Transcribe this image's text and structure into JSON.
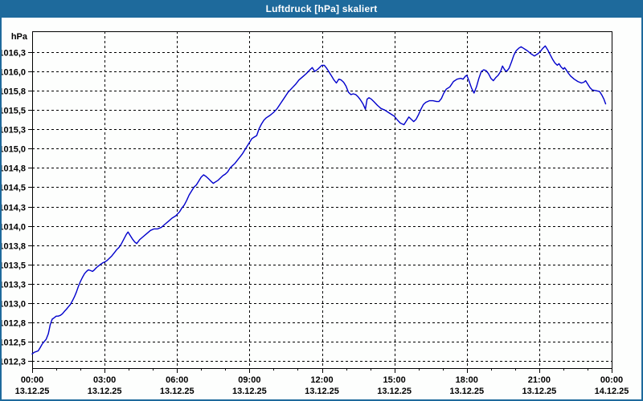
{
  "window": {
    "title": "Luftdruck [hPa] skaliert"
  },
  "chart_data": {
    "type": "line",
    "title": "Luftdruck [hPa] skaliert",
    "unit_label": "hPa",
    "xlabel": "",
    "ylabel": "hPa",
    "grid": "dashed",
    "legend_position": "none",
    "line_color": "#0000CC",
    "frame_color": "#1E6A9C",
    "plot_bg_color": "#FDFEFD",
    "grid_color": "#000000",
    "ylim": [
      1012.16,
      1016.52
    ],
    "xlim_hours": [
      0,
      24
    ],
    "minor_tick_interval_hours": 1,
    "y_ticks": [
      {
        "value": 1016.25,
        "label": "1016,3"
      },
      {
        "value": 1016.0,
        "label": "1016,0"
      },
      {
        "value": 1015.75,
        "label": "1015,8"
      },
      {
        "value": 1015.5,
        "label": "1015,5"
      },
      {
        "value": 1015.25,
        "label": "1015,3"
      },
      {
        "value": 1015.0,
        "label": "1015,0"
      },
      {
        "value": 1014.75,
        "label": "1014,8"
      },
      {
        "value": 1014.5,
        "label": "1014,5"
      },
      {
        "value": 1014.25,
        "label": "1014,3"
      },
      {
        "value": 1014.0,
        "label": "1014,0"
      },
      {
        "value": 1013.75,
        "label": "1013,8"
      },
      {
        "value": 1013.5,
        "label": "1013,5"
      },
      {
        "value": 1013.25,
        "label": "1013,3"
      },
      {
        "value": 1013.0,
        "label": "1013,0"
      },
      {
        "value": 1012.75,
        "label": "1012,8"
      },
      {
        "value": 1012.5,
        "label": "1012,5"
      },
      {
        "value": 1012.25,
        "label": "1012,3"
      }
    ],
    "x_ticks": [
      {
        "hour": 0,
        "time": "00:00",
        "date": "13.12.25"
      },
      {
        "hour": 3,
        "time": "03:00",
        "date": "13.12.25"
      },
      {
        "hour": 6,
        "time": "06:00",
        "date": "13.12.25"
      },
      {
        "hour": 9,
        "time": "09:00",
        "date": "13.12.25"
      },
      {
        "hour": 12,
        "time": "12:00",
        "date": "13.12.25"
      },
      {
        "hour": 15,
        "time": "15:00",
        "date": "13.12.25"
      },
      {
        "hour": 18,
        "time": "18:00",
        "date": "13.12.25"
      },
      {
        "hour": 21,
        "time": "21:00",
        "date": "13.12.25"
      },
      {
        "hour": 24,
        "time": "00:00",
        "date": "14.12.25"
      }
    ],
    "series": [
      {
        "name": "Luftdruck",
        "points": [
          [
            0.0,
            1012.34
          ],
          [
            0.08,
            1012.36
          ],
          [
            0.17,
            1012.37
          ],
          [
            0.25,
            1012.38
          ],
          [
            0.33,
            1012.42
          ],
          [
            0.42,
            1012.47
          ],
          [
            0.5,
            1012.5
          ],
          [
            0.58,
            1012.53
          ],
          [
            0.67,
            1012.6
          ],
          [
            0.75,
            1012.72
          ],
          [
            0.83,
            1012.79
          ],
          [
            0.92,
            1012.81
          ],
          [
            1.0,
            1012.83
          ],
          [
            1.08,
            1012.83
          ],
          [
            1.17,
            1012.84
          ],
          [
            1.25,
            1012.86
          ],
          [
            1.33,
            1012.89
          ],
          [
            1.42,
            1012.92
          ],
          [
            1.5,
            1012.95
          ],
          [
            1.58,
            1012.98
          ],
          [
            1.67,
            1013.03
          ],
          [
            1.75,
            1013.08
          ],
          [
            1.83,
            1013.14
          ],
          [
            1.92,
            1013.22
          ],
          [
            2.0,
            1013.28
          ],
          [
            2.08,
            1013.33
          ],
          [
            2.17,
            1013.38
          ],
          [
            2.25,
            1013.41
          ],
          [
            2.33,
            1013.43
          ],
          [
            2.42,
            1013.42
          ],
          [
            2.5,
            1013.41
          ],
          [
            2.58,
            1013.43
          ],
          [
            2.67,
            1013.46
          ],
          [
            2.75,
            1013.48
          ],
          [
            2.83,
            1013.5
          ],
          [
            2.92,
            1013.52
          ],
          [
            3.0,
            1013.53
          ],
          [
            3.1,
            1013.55
          ],
          [
            3.2,
            1013.58
          ],
          [
            3.3,
            1013.61
          ],
          [
            3.4,
            1013.65
          ],
          [
            3.5,
            1013.69
          ],
          [
            3.6,
            1013.72
          ],
          [
            3.7,
            1013.77
          ],
          [
            3.8,
            1013.83
          ],
          [
            3.9,
            1013.89
          ],
          [
            3.97,
            1013.92
          ],
          [
            4.05,
            1013.88
          ],
          [
            4.15,
            1013.83
          ],
          [
            4.25,
            1013.79
          ],
          [
            4.33,
            1013.77
          ],
          [
            4.45,
            1013.82
          ],
          [
            4.6,
            1013.86
          ],
          [
            4.75,
            1013.9
          ],
          [
            4.9,
            1013.94
          ],
          [
            5.05,
            1013.96
          ],
          [
            5.2,
            1013.96
          ],
          [
            5.35,
            1013.98
          ],
          [
            5.5,
            1014.02
          ],
          [
            5.65,
            1014.06
          ],
          [
            5.8,
            1014.1
          ],
          [
            5.95,
            1014.13
          ],
          [
            6.1,
            1014.18
          ],
          [
            6.2,
            1014.23
          ],
          [
            6.3,
            1014.27
          ],
          [
            6.4,
            1014.33
          ],
          [
            6.5,
            1014.4
          ],
          [
            6.6,
            1014.45
          ],
          [
            6.7,
            1014.5
          ],
          [
            6.8,
            1014.53
          ],
          [
            6.9,
            1014.58
          ],
          [
            7.0,
            1014.63
          ],
          [
            7.1,
            1014.66
          ],
          [
            7.2,
            1014.64
          ],
          [
            7.3,
            1014.61
          ],
          [
            7.4,
            1014.58
          ],
          [
            7.5,
            1014.55
          ],
          [
            7.6,
            1014.57
          ],
          [
            7.7,
            1014.59
          ],
          [
            7.8,
            1014.62
          ],
          [
            7.9,
            1014.65
          ],
          [
            8.0,
            1014.67
          ],
          [
            8.1,
            1014.7
          ],
          [
            8.2,
            1014.75
          ],
          [
            8.3,
            1014.78
          ],
          [
            8.4,
            1014.81
          ],
          [
            8.5,
            1014.85
          ],
          [
            8.6,
            1014.89
          ],
          [
            8.7,
            1014.93
          ],
          [
            8.8,
            1014.98
          ],
          [
            8.9,
            1015.03
          ],
          [
            9.0,
            1015.08
          ],
          [
            9.1,
            1015.13
          ],
          [
            9.2,
            1015.15
          ],
          [
            9.3,
            1015.17
          ],
          [
            9.4,
            1015.26
          ],
          [
            9.5,
            1015.32
          ],
          [
            9.6,
            1015.37
          ],
          [
            9.7,
            1015.4
          ],
          [
            9.85,
            1015.43
          ],
          [
            10.0,
            1015.47
          ],
          [
            10.15,
            1015.52
          ],
          [
            10.3,
            1015.59
          ],
          [
            10.45,
            1015.66
          ],
          [
            10.6,
            1015.73
          ],
          [
            10.75,
            1015.78
          ],
          [
            10.9,
            1015.83
          ],
          [
            11.05,
            1015.89
          ],
          [
            11.2,
            1015.93
          ],
          [
            11.35,
            1015.97
          ],
          [
            11.5,
            1016.02
          ],
          [
            11.6,
            1016.05
          ],
          [
            11.7,
            1016.0
          ],
          [
            11.8,
            1016.02
          ],
          [
            11.9,
            1016.05
          ],
          [
            12.0,
            1016.08
          ],
          [
            12.1,
            1016.08
          ],
          [
            12.2,
            1016.04
          ],
          [
            12.3,
            1015.99
          ],
          [
            12.4,
            1015.94
          ],
          [
            12.5,
            1015.89
          ],
          [
            12.6,
            1015.85
          ],
          [
            12.7,
            1015.9
          ],
          [
            12.8,
            1015.89
          ],
          [
            12.9,
            1015.86
          ],
          [
            13.0,
            1015.81
          ],
          [
            13.1,
            1015.73
          ],
          [
            13.2,
            1015.7
          ],
          [
            13.3,
            1015.71
          ],
          [
            13.4,
            1015.7
          ],
          [
            13.5,
            1015.67
          ],
          [
            13.6,
            1015.63
          ],
          [
            13.7,
            1015.58
          ],
          [
            13.8,
            1015.51
          ],
          [
            13.87,
            1015.64
          ],
          [
            13.95,
            1015.66
          ],
          [
            14.05,
            1015.64
          ],
          [
            14.15,
            1015.61
          ],
          [
            14.3,
            1015.56
          ],
          [
            14.45,
            1015.52
          ],
          [
            14.6,
            1015.5
          ],
          [
            14.75,
            1015.47
          ],
          [
            14.9,
            1015.44
          ],
          [
            15.0,
            1015.42
          ],
          [
            15.1,
            1015.38
          ],
          [
            15.25,
            1015.33
          ],
          [
            15.4,
            1015.31
          ],
          [
            15.5,
            1015.36
          ],
          [
            15.6,
            1015.41
          ],
          [
            15.7,
            1015.38
          ],
          [
            15.8,
            1015.35
          ],
          [
            15.9,
            1015.38
          ],
          [
            16.0,
            1015.44
          ],
          [
            16.1,
            1015.51
          ],
          [
            16.2,
            1015.57
          ],
          [
            16.3,
            1015.6
          ],
          [
            16.45,
            1015.62
          ],
          [
            16.6,
            1015.62
          ],
          [
            16.75,
            1015.61
          ],
          [
            16.85,
            1015.61
          ],
          [
            16.95,
            1015.65
          ],
          [
            17.05,
            1015.72
          ],
          [
            17.15,
            1015.77
          ],
          [
            17.3,
            1015.8
          ],
          [
            17.45,
            1015.87
          ],
          [
            17.6,
            1015.9
          ],
          [
            17.75,
            1015.91
          ],
          [
            17.85,
            1015.9
          ],
          [
            17.95,
            1015.94
          ],
          [
            18.0,
            1015.95
          ],
          [
            18.1,
            1015.87
          ],
          [
            18.2,
            1015.78
          ],
          [
            18.3,
            1015.72
          ],
          [
            18.4,
            1015.8
          ],
          [
            18.5,
            1015.91
          ],
          [
            18.6,
            1016.0
          ],
          [
            18.7,
            1016.02
          ],
          [
            18.8,
            1016.01
          ],
          [
            18.9,
            1015.97
          ],
          [
            19.0,
            1015.91
          ],
          [
            19.1,
            1015.88
          ],
          [
            19.2,
            1015.92
          ],
          [
            19.3,
            1015.95
          ],
          [
            19.4,
            1016.0
          ],
          [
            19.48,
            1016.07
          ],
          [
            19.57,
            1016.02
          ],
          [
            19.65,
            1016.0
          ],
          [
            19.75,
            1016.04
          ],
          [
            19.85,
            1016.12
          ],
          [
            19.95,
            1016.21
          ],
          [
            20.05,
            1016.27
          ],
          [
            20.15,
            1016.3
          ],
          [
            20.25,
            1016.32
          ],
          [
            20.35,
            1016.3
          ],
          [
            20.5,
            1016.27
          ],
          [
            20.65,
            1016.23
          ],
          [
            20.8,
            1016.2
          ],
          [
            20.95,
            1016.23
          ],
          [
            21.05,
            1016.26
          ],
          [
            21.15,
            1016.3
          ],
          [
            21.25,
            1016.33
          ],
          [
            21.35,
            1016.28
          ],
          [
            21.45,
            1016.22
          ],
          [
            21.55,
            1016.16
          ],
          [
            21.65,
            1016.11
          ],
          [
            21.75,
            1016.08
          ],
          [
            21.82,
            1016.1
          ],
          [
            21.9,
            1016.06
          ],
          [
            22.0,
            1016.03
          ],
          [
            22.05,
            1016.05
          ],
          [
            22.12,
            1016.02
          ],
          [
            22.2,
            1015.98
          ],
          [
            22.3,
            1015.94
          ],
          [
            22.45,
            1015.9
          ],
          [
            22.6,
            1015.87
          ],
          [
            22.75,
            1015.85
          ],
          [
            22.85,
            1015.86
          ],
          [
            22.92,
            1015.88
          ],
          [
            23.0,
            1015.84
          ],
          [
            23.1,
            1015.79
          ],
          [
            23.2,
            1015.76
          ],
          [
            23.35,
            1015.75
          ],
          [
            23.5,
            1015.74
          ],
          [
            23.6,
            1015.69
          ],
          [
            23.68,
            1015.64
          ],
          [
            23.75,
            1015.58
          ]
        ]
      }
    ]
  }
}
